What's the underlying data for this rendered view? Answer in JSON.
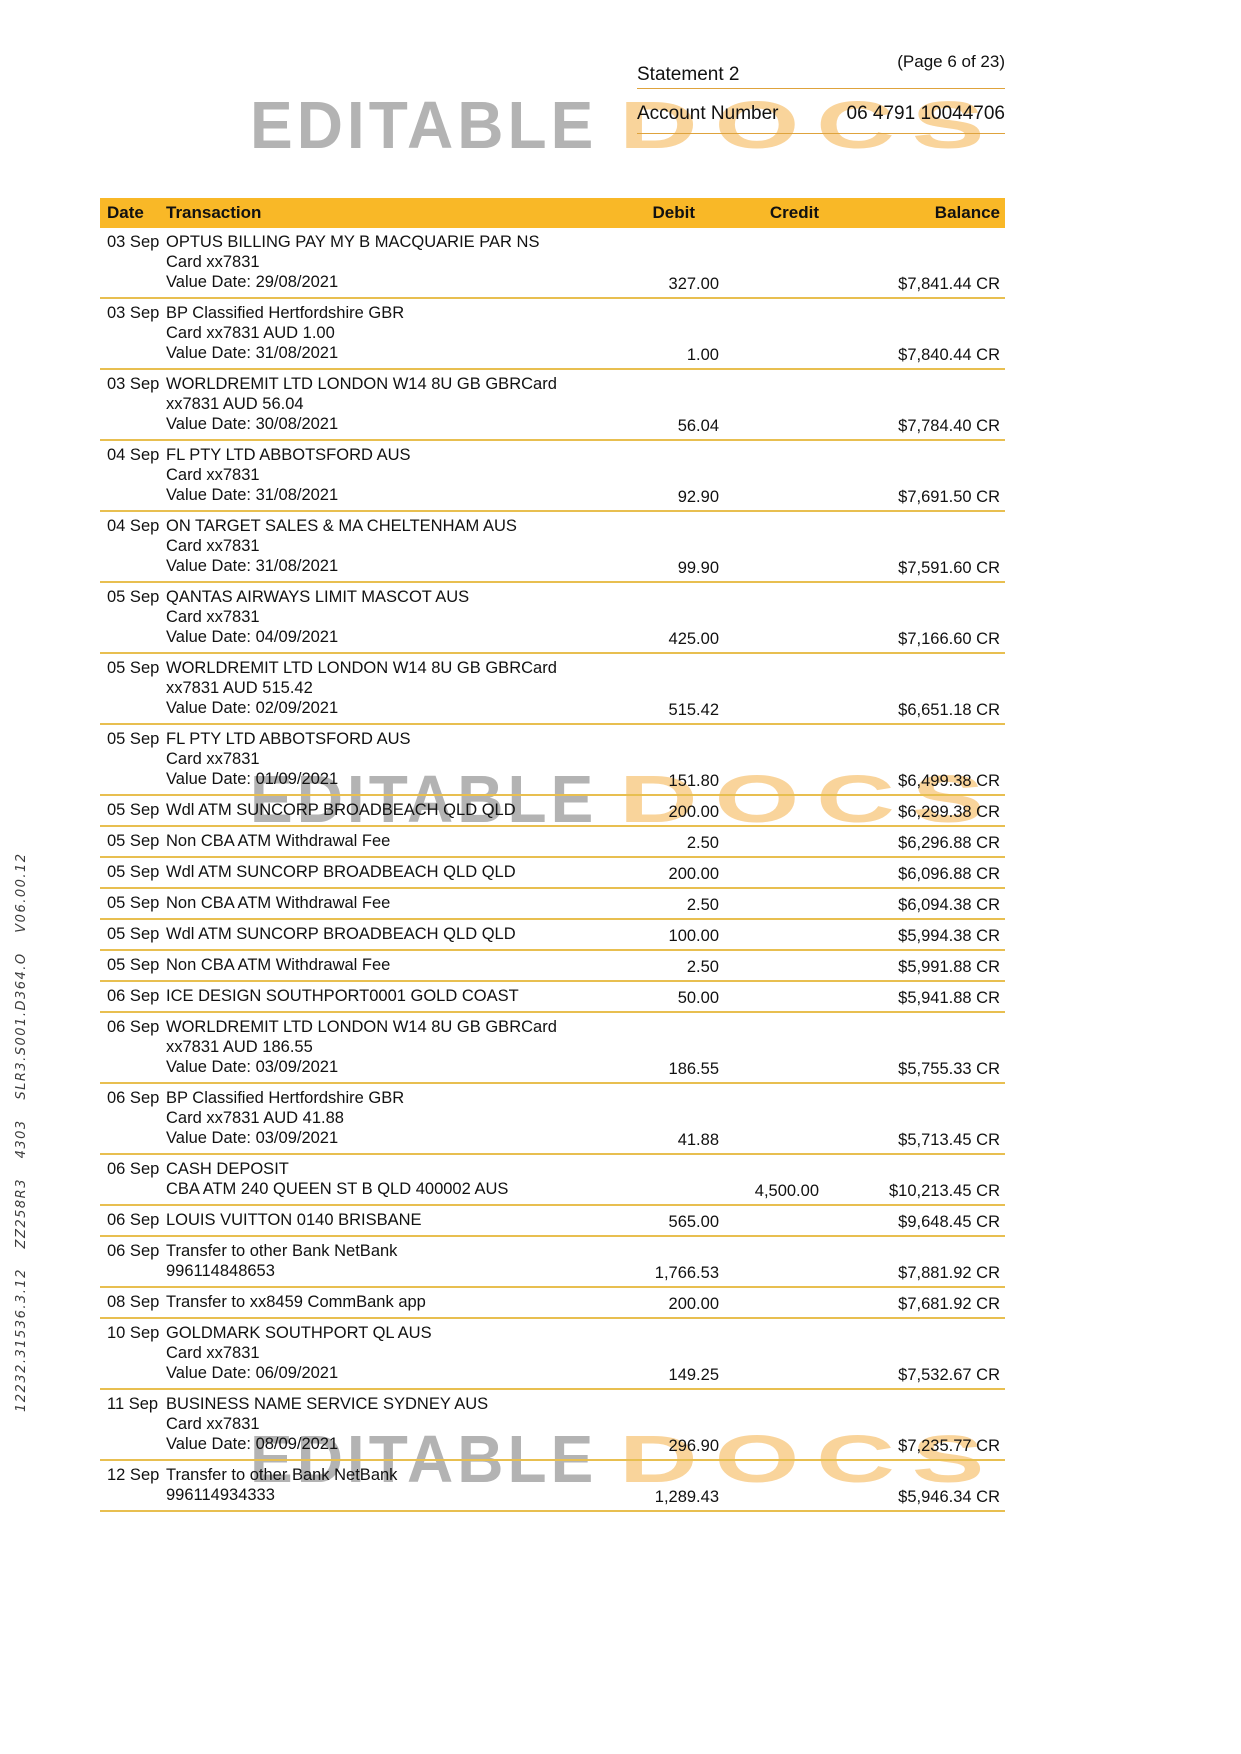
{
  "header": {
    "statement_label": "Statement 2",
    "page_label": "(Page 6 of 23)",
    "account_number_label": "Account Number",
    "account_number_value": "06 4791 10044706"
  },
  "watermark": {
    "word1": "EDITABLE",
    "word2": "DOCS"
  },
  "side_code": "12232.31536.3.12 ZZ258R3 4303 SLR3.S001.D364.O V06.00.12",
  "colors": {
    "table_header_bg": "#F9B827",
    "row_separator": "#E8BF50",
    "header_underline": "#DFA33C",
    "watermark_gray": "#B3B3B3",
    "watermark_orange": "#F5B14B",
    "text": "#111111"
  },
  "table": {
    "columns": {
      "date": "Date",
      "transaction": "Transaction",
      "debit": "Debit",
      "credit": "Credit",
      "balance": "Balance"
    },
    "rows": [
      {
        "date": "03 Sep",
        "lines": [
          "OPTUS BILLING PAY MY B MACQUARIE PAR NS",
          "Card xx7831",
          "Value Date: 29/08/2021"
        ],
        "debit": "327.00",
        "credit": "",
        "balance": "$7,841.44 CR"
      },
      {
        "date": "03 Sep",
        "lines": [
          "BP Classified Hertfordshire GBR",
          "Card xx7831 AUD 1.00",
          "Value Date: 31/08/2021"
        ],
        "debit": "1.00",
        "credit": "",
        "balance": "$7,840.44 CR"
      },
      {
        "date": "03 Sep",
        "lines": [
          "WORLDREMIT LTD LONDON W14 8U GB GBRCard",
          "xx7831 AUD 56.04",
          "Value Date: 30/08/2021"
        ],
        "debit": "56.04",
        "credit": "",
        "balance": "$7,784.40 CR"
      },
      {
        "date": "04 Sep",
        "lines": [
          "FL PTY LTD ABBOTSFORD AUS",
          "Card xx7831",
          "Value Date: 31/08/2021"
        ],
        "debit": "92.90",
        "credit": "",
        "balance": "$7,691.50 CR"
      },
      {
        "date": "04 Sep",
        "lines": [
          "ON TARGET SALES & MA CHELTENHAM AUS",
          "Card xx7831",
          "Value Date: 31/08/2021"
        ],
        "debit": "99.90",
        "credit": "",
        "balance": "$7,591.60 CR"
      },
      {
        "date": "05 Sep",
        "lines": [
          "QANTAS AIRWAYS LIMIT MASCOT AUS",
          "Card xx7831",
          "Value Date: 04/09/2021"
        ],
        "debit": "425.00",
        "credit": "",
        "balance": "$7,166.60 CR"
      },
      {
        "date": "05 Sep",
        "lines": [
          "WORLDREMIT LTD LONDON W14 8U GB GBRCard",
          "xx7831 AUD 515.42",
          "Value Date: 02/09/2021"
        ],
        "debit": "515.42",
        "credit": "",
        "balance": "$6,651.18 CR"
      },
      {
        "date": "05 Sep",
        "lines": [
          "FL PTY LTD ABBOTSFORD AUS",
          "Card xx7831",
          "Value Date: 01/09/2021"
        ],
        "debit": "151.80",
        "credit": "",
        "balance": "$6,499.38 CR"
      },
      {
        "date": "05 Sep",
        "lines": [
          "Wdl ATM SUNCORP BROADBEACH QLD QLD"
        ],
        "debit": "200.00",
        "credit": "",
        "balance": "$6,299.38 CR"
      },
      {
        "date": "05 Sep",
        "lines": [
          "Non CBA ATM Withdrawal Fee"
        ],
        "debit": "2.50",
        "credit": "",
        "balance": "$6,296.88 CR"
      },
      {
        "date": "05 Sep",
        "lines": [
          "Wdl ATM SUNCORP BROADBEACH QLD QLD"
        ],
        "debit": "200.00",
        "credit": "",
        "balance": "$6,096.88 CR"
      },
      {
        "date": "05 Sep",
        "lines": [
          "Non CBA ATM Withdrawal Fee"
        ],
        "debit": "2.50",
        "credit": "",
        "balance": "$6,094.38 CR"
      },
      {
        "date": "05 Sep",
        "lines": [
          "Wdl ATM SUNCORP BROADBEACH QLD QLD"
        ],
        "debit": "100.00",
        "credit": "",
        "balance": "$5,994.38 CR"
      },
      {
        "date": "05 Sep",
        "lines": [
          "Non CBA ATM Withdrawal Fee"
        ],
        "debit": "2.50",
        "credit": "",
        "balance": "$5,991.88 CR"
      },
      {
        "date": "06 Sep",
        "lines": [
          "ICE DESIGN SOUTHPORT0001 GOLD COAST"
        ],
        "debit": "50.00",
        "credit": "",
        "balance": "$5,941.88 CR"
      },
      {
        "date": "06 Sep",
        "lines": [
          "WORLDREMIT LTD LONDON W14 8U GB GBRCard",
          "xx7831 AUD 186.55",
          "Value Date: 03/09/2021"
        ],
        "debit": "186.55",
        "credit": "",
        "balance": "$5,755.33 CR"
      },
      {
        "date": "06 Sep",
        "lines": [
          "BP Classified Hertfordshire GBR",
          "Card xx7831 AUD 41.88",
          "Value Date: 03/09/2021"
        ],
        "debit": "41.88",
        "credit": "",
        "balance": "$5,713.45 CR"
      },
      {
        "date": "06 Sep",
        "lines": [
          "CASH DEPOSIT",
          "CBA ATM 240 QUEEN ST B QLD 400002 AUS"
        ],
        "debit": "",
        "credit": "4,500.00",
        "balance": "$10,213.45 CR"
      },
      {
        "date": "06 Sep",
        "lines": [
          "LOUIS VUITTON 0140 BRISBANE"
        ],
        "debit": "565.00",
        "credit": "",
        "balance": "$9,648.45 CR"
      },
      {
        "date": "06 Sep",
        "lines": [
          "Transfer to other Bank NetBank",
          "996114848653"
        ],
        "debit": "1,766.53",
        "credit": "",
        "balance": "$7,881.92 CR"
      },
      {
        "date": "08 Sep",
        "lines": [
          "Transfer to xx8459 CommBank app"
        ],
        "debit": "200.00",
        "credit": "",
        "balance": "$7,681.92 CR"
      },
      {
        "date": "10 Sep",
        "lines": [
          "GOLDMARK SOUTHPORT QL AUS",
          "Card xx7831",
          "Value Date: 06/09/2021"
        ],
        "debit": "149.25",
        "credit": "",
        "balance": "$7,532.67 CR"
      },
      {
        "date": "11 Sep",
        "lines": [
          "BUSINESS NAME SERVICE SYDNEY AUS",
          "Card xx7831",
          "Value Date: 08/09/2021"
        ],
        "debit": "296.90",
        "credit": "",
        "balance": "$7,235.77 CR"
      },
      {
        "date": "12 Sep",
        "lines": [
          "Transfer to other Bank NetBank",
          "996114934333"
        ],
        "debit": "1,289.43",
        "credit": "",
        "balance": "$5,946.34 CR"
      }
    ]
  }
}
